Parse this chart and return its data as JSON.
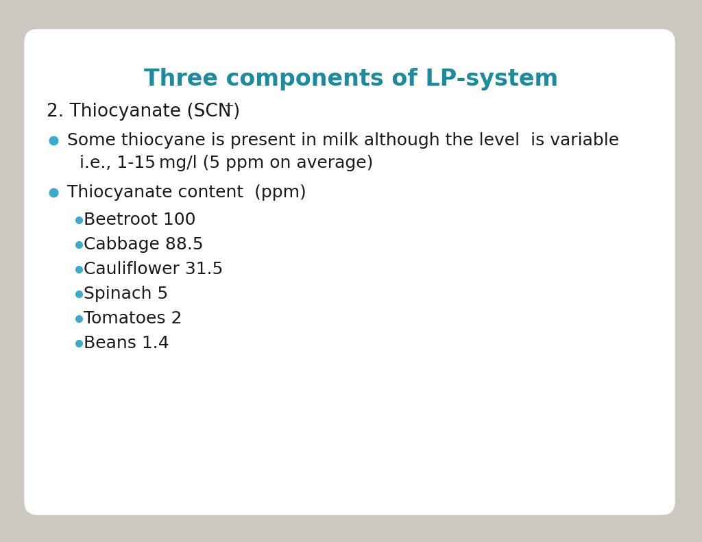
{
  "title": "Three components of LP-system",
  "title_color": "#1a8c9c",
  "title_fontsize": 24,
  "background_outer": "#ccc8c0",
  "background_inner": "#ffffff",
  "heading_color": "#1a1a1a",
  "heading_fontsize": 19,
  "bullet_color": "#3aabcc",
  "text_color": "#1a1a1a",
  "line1": "Some thiocyane is present in milk although the level  is variable",
  "line2": "i.e., 1-15 mg/l (5 ppm on average)",
  "bullet2_text": "Thiocyanate content  (ppm)",
  "sub_bullets": [
    "Beetroot 100",
    "Cabbage 88.5",
    "Cauliflower 31.5",
    "Spinach 5",
    "Tomatoes 2",
    "Beans 1.4"
  ],
  "main_fontsize": 18,
  "sub_fontsize": 18
}
